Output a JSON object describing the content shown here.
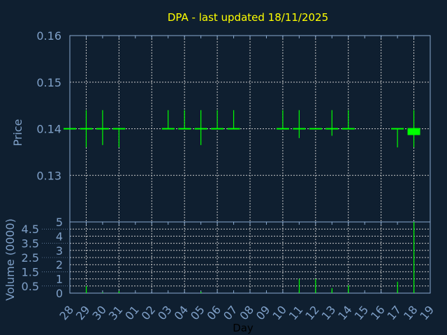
{
  "chart_data": [
    {
      "type": "candlestick",
      "title": "DPA - last updated 18/11/2025",
      "ylabel": "Price",
      "ylim": [
        0.12,
        0.16
      ],
      "yticks": [
        "0.16",
        "0.15",
        "0.14",
        "0.13"
      ],
      "ytick_values": [
        0.16,
        0.15,
        0.14,
        0.13
      ],
      "grid": true,
      "colors": {
        "up": "#00ff00",
        "down": "#00ff00",
        "grid": "#c8c8c8",
        "axis": "#8aaad0",
        "title": "#ffff00",
        "text": "#7fa0c8",
        "background": "#0f1f30"
      },
      "candles": [
        {
          "day": "28",
          "open": 0.14,
          "high": 0.14,
          "low": 0.14,
          "close": 0.14
        },
        {
          "day": "29",
          "open": 0.14,
          "high": 0.144,
          "low": 0.136,
          "close": 0.14
        },
        {
          "day": "30",
          "open": 0.14,
          "high": 0.144,
          "low": 0.1365,
          "close": 0.14
        },
        {
          "day": "31",
          "open": 0.14,
          "high": 0.14,
          "low": 0.136,
          "close": 0.14
        },
        {
          "day": "03",
          "open": 0.14,
          "high": 0.144,
          "low": 0.14,
          "close": 0.14
        },
        {
          "day": "04",
          "open": 0.14,
          "high": 0.144,
          "low": 0.14,
          "close": 0.14
        },
        {
          "day": "05",
          "open": 0.14,
          "high": 0.144,
          "low": 0.1365,
          "close": 0.14
        },
        {
          "day": "06",
          "open": 0.14,
          "high": 0.144,
          "low": 0.14,
          "close": 0.14
        },
        {
          "day": "07",
          "open": 0.14,
          "high": 0.144,
          "low": 0.14,
          "close": 0.14
        },
        {
          "day": "10",
          "open": 0.14,
          "high": 0.144,
          "low": 0.14,
          "close": 0.14
        },
        {
          "day": "11",
          "open": 0.14,
          "high": 0.144,
          "low": 0.138,
          "close": 0.14
        },
        {
          "day": "12",
          "open": 0.14,
          "high": 0.14,
          "low": 0.14,
          "close": 0.14
        },
        {
          "day": "13",
          "open": 0.14,
          "high": 0.144,
          "low": 0.1385,
          "close": 0.14
        },
        {
          "day": "14",
          "open": 0.14,
          "high": 0.144,
          "low": 0.14,
          "close": 0.14
        },
        {
          "day": "17",
          "open": 0.14,
          "high": 0.14,
          "low": 0.136,
          "close": 0.14
        },
        {
          "day": "18",
          "open": 0.14,
          "high": 0.144,
          "low": 0.136,
          "close": 0.1385
        }
      ]
    },
    {
      "type": "bar",
      "ylabel": "Volume (0000)",
      "xlabel": "Day",
      "ylim": [
        0,
        5
      ],
      "yticks": [
        "0",
        "0.5",
        "1",
        "1.5",
        "2",
        "2.5",
        "3",
        "3.5",
        "4",
        "4.5",
        "5"
      ],
      "ytick_values": [
        0,
        0.5,
        1,
        1.5,
        2,
        2.5,
        3,
        3.5,
        4,
        4.5,
        5
      ],
      "grid": true,
      "categories": [
        "28",
        "29",
        "30",
        "31",
        "01",
        "02",
        "03",
        "04",
        "05",
        "06",
        "07",
        "08",
        "09",
        "10",
        "11",
        "12",
        "13",
        "14",
        "15",
        "16",
        "17",
        "18",
        "19"
      ],
      "bars": [
        {
          "day": "29",
          "value": 0.5
        },
        {
          "day": "30",
          "value": 0.05
        },
        {
          "day": "31",
          "value": 0.15
        },
        {
          "day": "05",
          "value": 0.1
        },
        {
          "day": "11",
          "value": 1.0
        },
        {
          "day": "12",
          "value": 1.0
        },
        {
          "day": "13",
          "value": 0.35
        },
        {
          "day": "14",
          "value": 0.55
        },
        {
          "day": "17",
          "value": 0.8
        },
        {
          "day": "18",
          "value": 5.0
        }
      ]
    }
  ]
}
